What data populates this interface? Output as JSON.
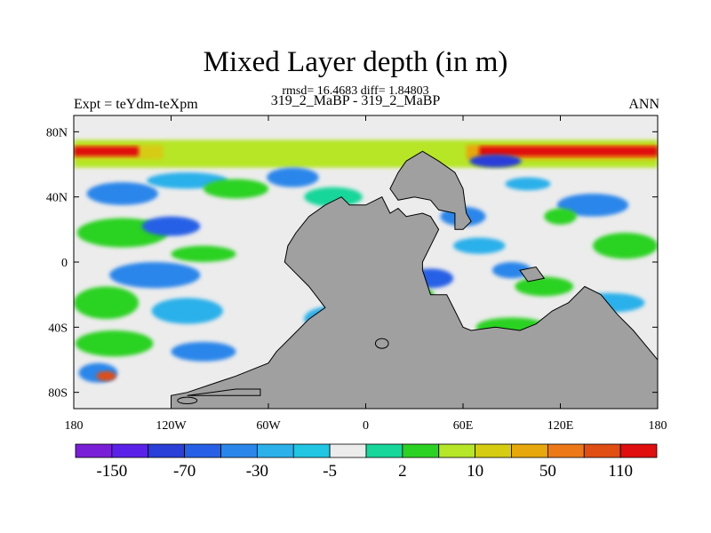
{
  "chart_data": {
    "type": "heatmap",
    "title": "Mixed Layer depth (in m)",
    "stats_text": "rmsd= 16.4683 diff= 1.84803",
    "case_label": "319_2_MaBP - 319_2_MaBP",
    "left_label": "Expt = teYdm-teXpm",
    "right_label": "ANN",
    "x_axis": {
      "range": [
        -180,
        180
      ],
      "ticks": [
        {
          "value": -180,
          "label": "180"
        },
        {
          "value": -120,
          "label": "120W"
        },
        {
          "value": -60,
          "label": "60W"
        },
        {
          "value": 0,
          "label": "0"
        },
        {
          "value": 60,
          "label": "60E"
        },
        {
          "value": 120,
          "label": "120E"
        },
        {
          "value": 180,
          "label": "180"
        }
      ]
    },
    "y_axis": {
      "range": [
        -90,
        90
      ],
      "ticks": [
        {
          "value": 80,
          "label": "80N"
        },
        {
          "value": 40,
          "label": "40N"
        },
        {
          "value": 0,
          "label": "0"
        },
        {
          "value": -40,
          "label": "40S"
        },
        {
          "value": -80,
          "label": "80S"
        }
      ]
    },
    "colorbar": {
      "colors": [
        "#7a1fd8",
        "#5a22e8",
        "#2a3ed8",
        "#2760e6",
        "#2a86ea",
        "#2cb0ea",
        "#20c6e2",
        "#ececec",
        "#16d69a",
        "#2bd223",
        "#b6e627",
        "#d6cc12",
        "#e6a80c",
        "#ec7818",
        "#e04e14",
        "#e00e0e"
      ],
      "labels": [
        {
          "boundary": 1,
          "text": "-150"
        },
        {
          "boundary": 3,
          "text": "-70"
        },
        {
          "boundary": 5,
          "text": "-30"
        },
        {
          "boundary": 7,
          "text": "-5"
        },
        {
          "boundary": 9,
          "text": "2"
        },
        {
          "boundary": 11,
          "text": "10"
        },
        {
          "boundary": 13,
          "text": "50"
        },
        {
          "boundary": 15,
          "text": "110"
        }
      ]
    },
    "land_color": "#a0a0a0",
    "bands": [
      {
        "lat": [
          58,
          75
        ],
        "lon": [
          -180,
          180
        ],
        "color": "#b6e627"
      },
      {
        "lat": [
          63,
          72
        ],
        "lon": [
          -180,
          -125
        ],
        "color": "#d6cc12"
      },
      {
        "lat": [
          65,
          71
        ],
        "lon": [
          -180,
          -140
        ],
        "color": "#e00e0e"
      },
      {
        "lat": [
          63,
          72
        ],
        "lon": [
          62,
          180
        ],
        "color": "#e6a80c"
      },
      {
        "lat": [
          65,
          71
        ],
        "lon": [
          70,
          180
        ],
        "color": "#e00e0e"
      }
    ],
    "blobs": [
      {
        "lon": -150,
        "lat": 42,
        "rx": 22,
        "ry": 7,
        "color": "#2a86ea"
      },
      {
        "lon": -110,
        "lat": 50,
        "rx": 25,
        "ry": 5,
        "color": "#2cb0ea"
      },
      {
        "lon": -80,
        "lat": 45,
        "rx": 20,
        "ry": 6,
        "color": "#2bd223"
      },
      {
        "lon": -45,
        "lat": 52,
        "rx": 16,
        "ry": 6,
        "color": "#2a86ea"
      },
      {
        "lon": -20,
        "lat": 40,
        "rx": 18,
        "ry": 6,
        "color": "#16d69a"
      },
      {
        "lon": -150,
        "lat": 18,
        "rx": 28,
        "ry": 9,
        "color": "#2bd223"
      },
      {
        "lon": -120,
        "lat": 22,
        "rx": 18,
        "ry": 6,
        "color": "#2760e6"
      },
      {
        "lon": -130,
        "lat": -8,
        "rx": 28,
        "ry": 8,
        "color": "#2a86ea"
      },
      {
        "lon": -100,
        "lat": 5,
        "rx": 20,
        "ry": 5,
        "color": "#2bd223"
      },
      {
        "lon": -160,
        "lat": -25,
        "rx": 20,
        "ry": 10,
        "color": "#2bd223"
      },
      {
        "lon": -110,
        "lat": -30,
        "rx": 22,
        "ry": 8,
        "color": "#2cb0ea"
      },
      {
        "lon": -155,
        "lat": -50,
        "rx": 24,
        "ry": 8,
        "color": "#2bd223"
      },
      {
        "lon": -100,
        "lat": -55,
        "rx": 20,
        "ry": 6,
        "color": "#2a86ea"
      },
      {
        "lon": -165,
        "lat": -68,
        "rx": 12,
        "ry": 6,
        "color": "#2a86ea"
      },
      {
        "lon": -160,
        "lat": -70,
        "rx": 6,
        "ry": 3,
        "color": "#e04e14"
      },
      {
        "lon": -20,
        "lat": -35,
        "rx": 18,
        "ry": 8,
        "color": "#2cb0ea"
      },
      {
        "lon": -40,
        "lat": -60,
        "rx": 12,
        "ry": 5,
        "color": "#2bd223"
      },
      {
        "lon": 60,
        "lat": 28,
        "rx": 14,
        "ry": 6,
        "color": "#2a86ea"
      },
      {
        "lon": 70,
        "lat": 10,
        "rx": 16,
        "ry": 5,
        "color": "#2cb0ea"
      },
      {
        "lon": 40,
        "lat": -10,
        "rx": 14,
        "ry": 6,
        "color": "#2760e6"
      },
      {
        "lon": 30,
        "lat": -20,
        "rx": 12,
        "ry": 5,
        "color": "#2bd223"
      },
      {
        "lon": 110,
        "lat": -15,
        "rx": 18,
        "ry": 6,
        "color": "#2bd223"
      },
      {
        "lon": 140,
        "lat": 35,
        "rx": 22,
        "ry": 7,
        "color": "#2a86ea"
      },
      {
        "lon": 160,
        "lat": 10,
        "rx": 20,
        "ry": 8,
        "color": "#2bd223"
      },
      {
        "lon": 150,
        "lat": -25,
        "rx": 22,
        "ry": 6,
        "color": "#2cb0ea"
      },
      {
        "lon": 90,
        "lat": -40,
        "rx": 22,
        "ry": 6,
        "color": "#2bd223"
      },
      {
        "lon": 80,
        "lat": 62,
        "rx": 16,
        "ry": 4,
        "color": "#2a3ed8"
      },
      {
        "lon": 100,
        "lat": 48,
        "rx": 14,
        "ry": 4,
        "color": "#2cb0ea"
      },
      {
        "lon": 120,
        "lat": 28,
        "rx": 10,
        "ry": 5,
        "color": "#2bd223"
      },
      {
        "lon": 90,
        "lat": -5,
        "rx": 12,
        "ry": 5,
        "color": "#2a86ea"
      }
    ],
    "land": [
      {
        "name": "land-polygon-main-continent",
        "points": [
          [
            -43,
            18
          ],
          [
            -35,
            28
          ],
          [
            -25,
            35
          ],
          [
            -15,
            40
          ],
          [
            -10,
            35
          ],
          [
            0,
            35
          ],
          [
            10,
            40
          ],
          [
            15,
            30
          ],
          [
            20,
            33
          ],
          [
            25,
            28
          ],
          [
            35,
            30
          ],
          [
            40,
            28
          ],
          [
            45,
            20
          ],
          [
            40,
            10
          ],
          [
            35,
            0
          ],
          [
            35,
            -5
          ],
          [
            40,
            -20
          ],
          [
            50,
            -20
          ],
          [
            55,
            -30
          ],
          [
            60,
            -40
          ],
          [
            65,
            -42
          ],
          [
            80,
            -40
          ],
          [
            95,
            -42
          ],
          [
            105,
            -38
          ],
          [
            115,
            -30
          ],
          [
            125,
            -25
          ],
          [
            135,
            -15
          ],
          [
            145,
            -20
          ],
          [
            155,
            -32
          ],
          [
            165,
            -42
          ],
          [
            180,
            -60
          ],
          [
            180,
            -90
          ],
          [
            -120,
            -90
          ],
          [
            -120,
            -82
          ],
          [
            -110,
            -80
          ],
          [
            -95,
            -75
          ],
          [
            -80,
            -70
          ],
          [
            -60,
            -62
          ],
          [
            -55,
            -55
          ],
          [
            -45,
            -45
          ],
          [
            -35,
            -35
          ],
          [
            -25,
            -28
          ],
          [
            -35,
            -15
          ],
          [
            -45,
            -5
          ],
          [
            -50,
            0
          ],
          [
            -48,
            10
          ]
        ]
      },
      {
        "name": "land-polygon-northern-landmass",
        "points": [
          [
            15,
            45
          ],
          [
            20,
            55
          ],
          [
            25,
            62
          ],
          [
            35,
            68
          ],
          [
            45,
            62
          ],
          [
            55,
            55
          ],
          [
            60,
            45
          ],
          [
            62,
            30
          ],
          [
            65,
            25
          ],
          [
            60,
            20
          ],
          [
            55,
            20
          ],
          [
            55,
            30
          ],
          [
            45,
            32
          ],
          [
            40,
            38
          ],
          [
            30,
            40
          ],
          [
            20,
            38
          ]
        ]
      },
      {
        "name": "land-polygon-peninsula",
        "points": [
          [
            -110,
            -82
          ],
          [
            -95,
            -80
          ],
          [
            -80,
            -78
          ],
          [
            -65,
            -78
          ],
          [
            -65,
            -82
          ]
        ]
      },
      {
        "name": "land-polygon-east-island",
        "points": [
          [
            95,
            -5
          ],
          [
            105,
            -3
          ],
          [
            110,
            -10
          ],
          [
            100,
            -12
          ]
        ]
      }
    ],
    "islands": [
      {
        "lon": 10,
        "lat": -50,
        "rx": 4,
        "ry": 3
      },
      {
        "lon": -110,
        "lat": -85,
        "rx": 6,
        "ry": 2
      }
    ]
  }
}
